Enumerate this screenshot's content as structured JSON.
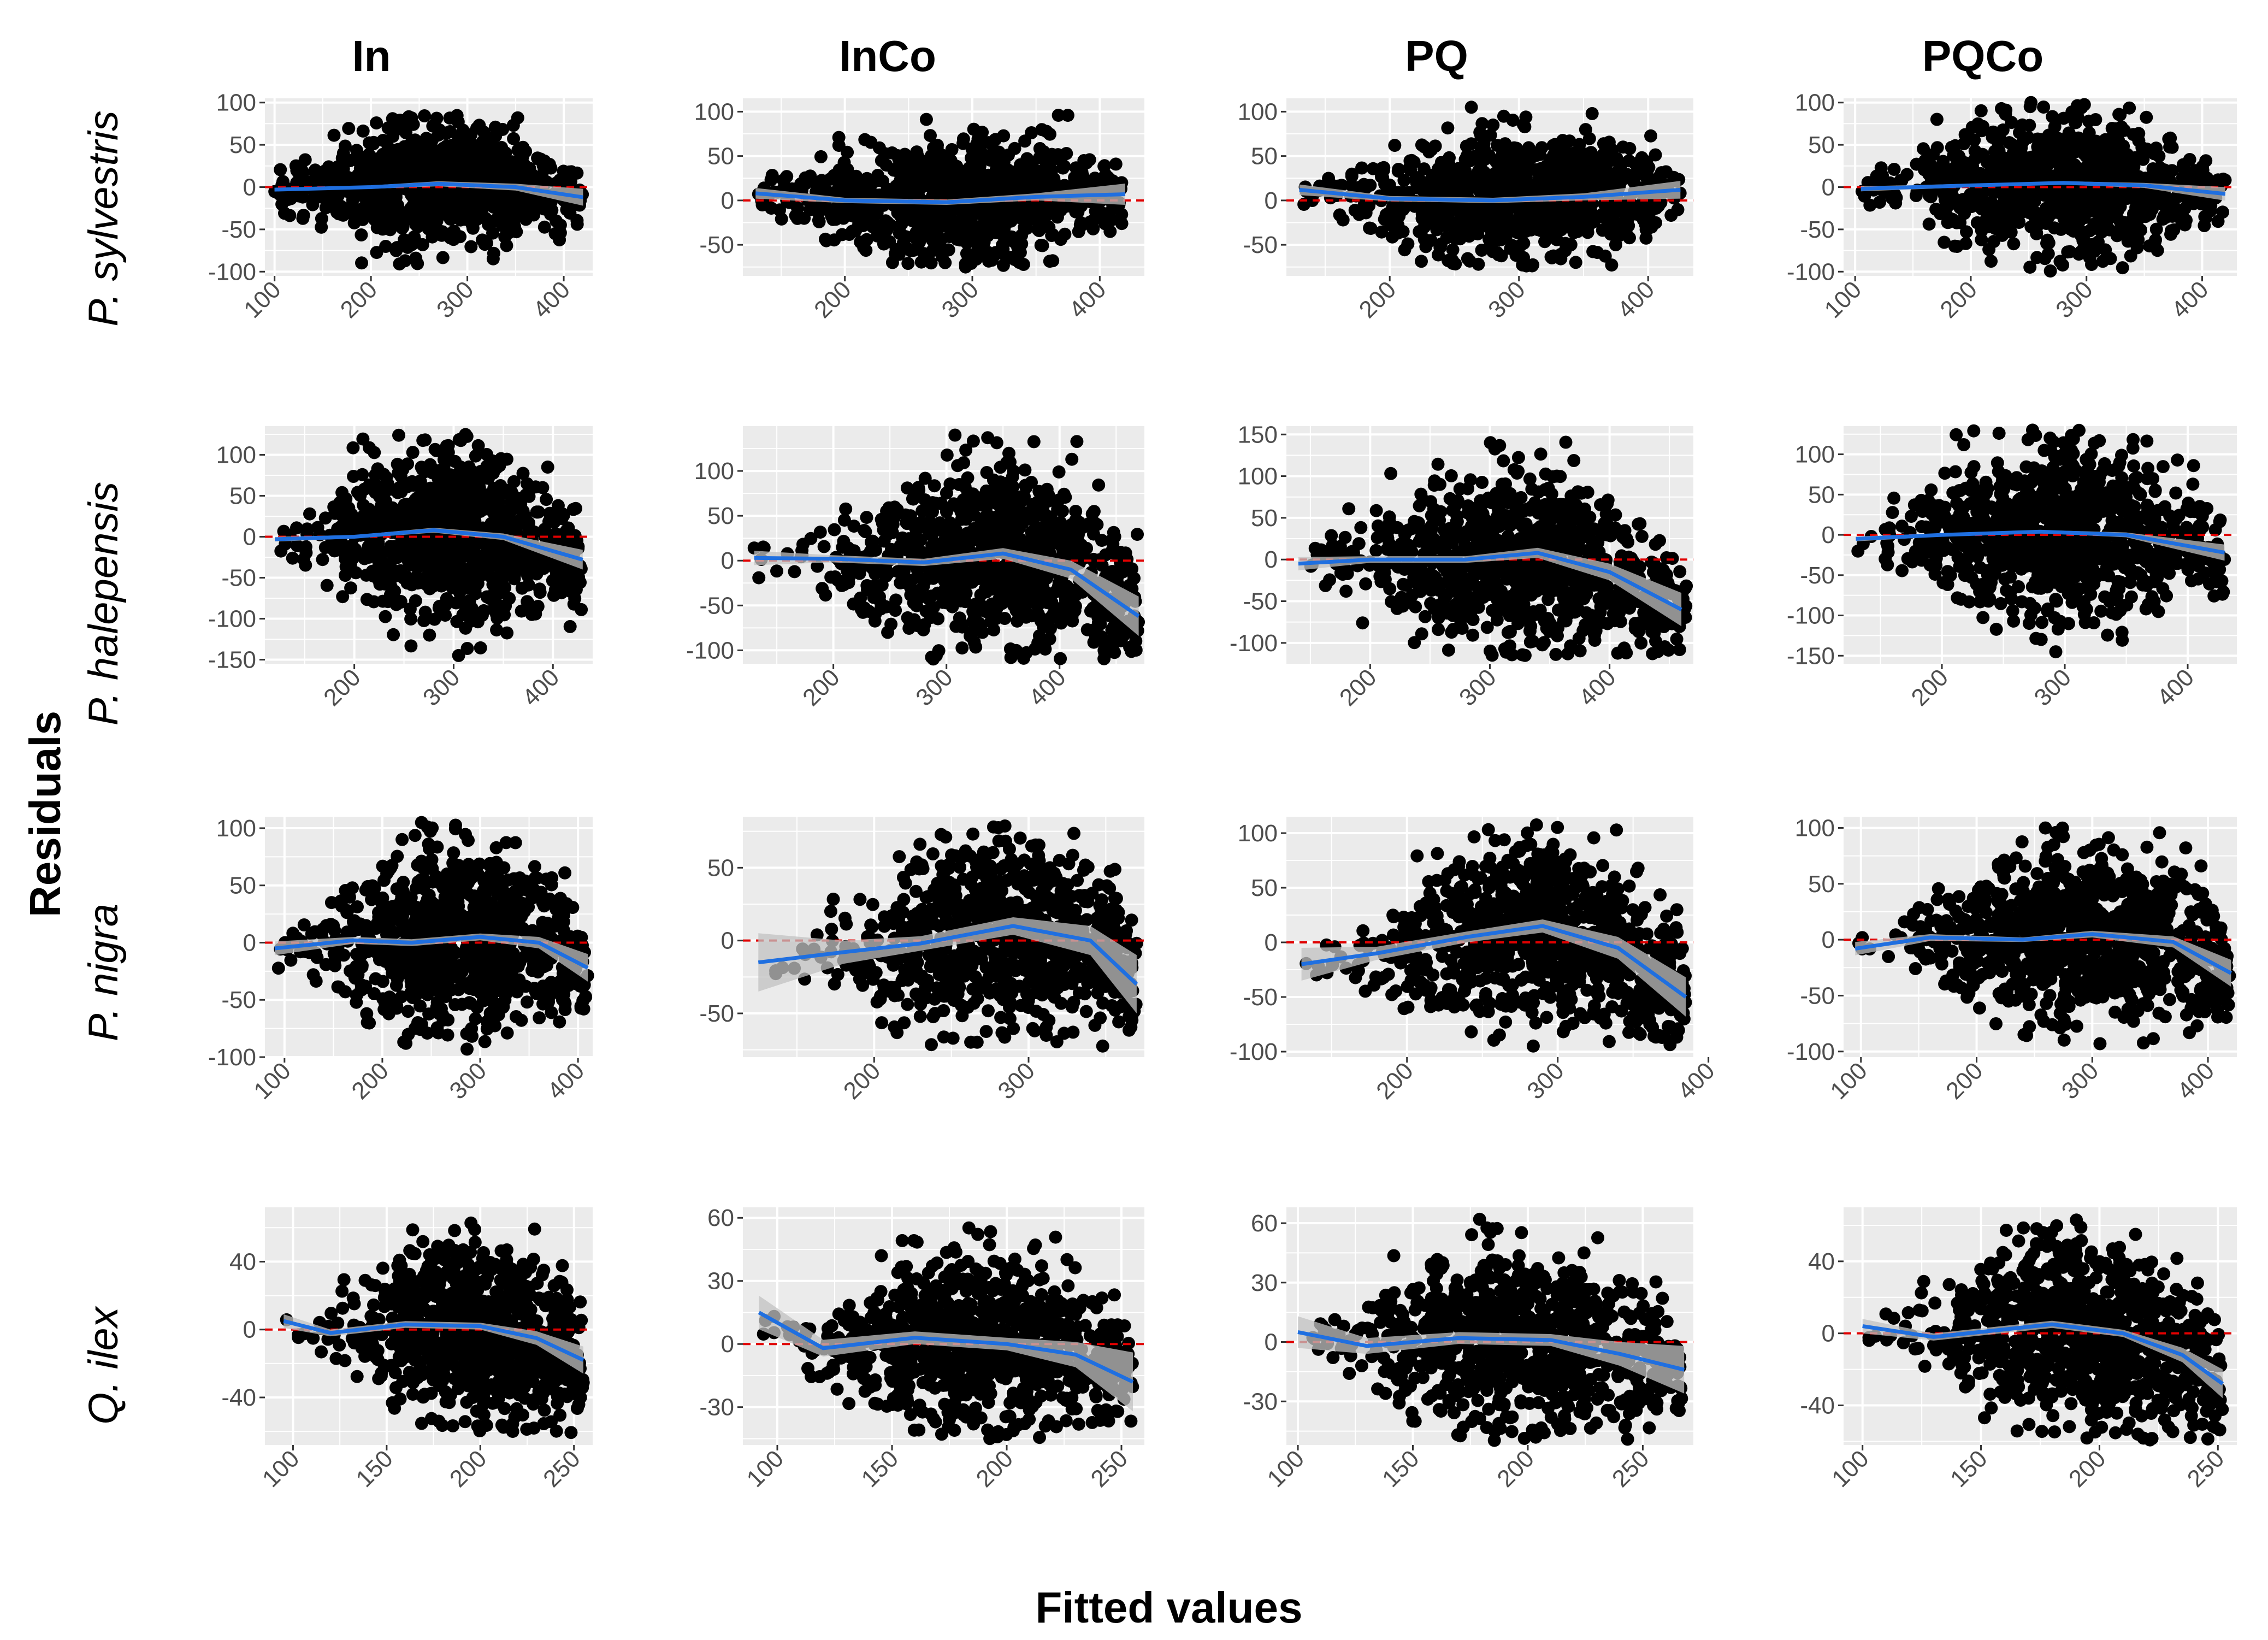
{
  "figure": {
    "col_titles": [
      "In",
      "InCo",
      "PQ",
      "PQCo"
    ],
    "row_labels": [
      "P. sylvestris",
      "P. halepensis",
      "P. nigra",
      "Q. ilex"
    ],
    "xlabel": "Fitted values",
    "ylabel": "Residuals"
  },
  "colors": {
    "panel_bg": "#ebebeb",
    "grid": "#ffffff",
    "points": "#000000",
    "smooth_line": "#1f6fe0",
    "confidence_band": "#c2c2c2",
    "zero_line": "#e00000",
    "tick_text": "#4d4d4d"
  },
  "chart_data": [
    {
      "type": "scatter",
      "row": 0,
      "col": 0,
      "xlim": [
        90,
        430
      ],
      "ylim": [
        -105,
        105
      ],
      "xticks": [
        100,
        200,
        300,
        400
      ],
      "yticks": [
        -100,
        -50,
        0,
        50,
        100
      ],
      "spread": {
        "x": [
          100,
          420
        ],
        "peak_x": 270,
        "pos": 85,
        "neg": -95
      },
      "smooth": [
        [
          100,
          -3
        ],
        [
          200,
          0
        ],
        [
          270,
          4
        ],
        [
          350,
          0
        ],
        [
          420,
          -12
        ]
      ],
      "band": [
        2,
        2,
        3,
        4,
        10
      ]
    },
    {
      "type": "scatter",
      "row": 0,
      "col": 1,
      "xlim": [
        120,
        435
      ],
      "ylim": [
        -85,
        115
      ],
      "xticks": [
        200,
        300,
        400
      ],
      "yticks": [
        -50,
        0,
        50,
        100
      ],
      "spread": {
        "x": [
          130,
          420
        ],
        "peak_x": 290,
        "pos": 100,
        "neg": -75
      },
      "smooth": [
        [
          130,
          8
        ],
        [
          200,
          0
        ],
        [
          280,
          -2
        ],
        [
          350,
          4
        ],
        [
          420,
          7
        ]
      ],
      "band": [
        6,
        3,
        3,
        4,
        12
      ]
    },
    {
      "type": "scatter",
      "row": 0,
      "col": 2,
      "xlim": [
        120,
        435
      ],
      "ylim": [
        -85,
        115
      ],
      "xticks": [
        200,
        300,
        400
      ],
      "yticks": [
        -50,
        0,
        50,
        100
      ],
      "spread": {
        "x": [
          130,
          425
        ],
        "peak_x": 300,
        "pos": 105,
        "neg": -75
      },
      "smooth": [
        [
          130,
          12
        ],
        [
          200,
          2
        ],
        [
          280,
          0
        ],
        [
          350,
          4
        ],
        [
          425,
          12
        ]
      ],
      "band": [
        6,
        3,
        3,
        4,
        10
      ]
    },
    {
      "type": "scatter",
      "row": 0,
      "col": 3,
      "xlim": [
        90,
        430
      ],
      "ylim": [
        -105,
        105
      ],
      "xticks": [
        100,
        200,
        300,
        400
      ],
      "yticks": [
        -100,
        -50,
        0,
        50,
        100
      ],
      "spread": {
        "x": [
          105,
          420
        ],
        "peak_x": 280,
        "pos": 100,
        "neg": -100
      },
      "smooth": [
        [
          105,
          -2
        ],
        [
          200,
          2
        ],
        [
          280,
          5
        ],
        [
          350,
          2
        ],
        [
          420,
          -8
        ]
      ],
      "band": [
        3,
        2,
        2,
        3,
        8
      ]
    },
    {
      "type": "scatter",
      "row": 1,
      "col": 0,
      "xlim": [
        110,
        440
      ],
      "ylim": [
        -155,
        135
      ],
      "xticks": [
        200,
        300,
        400
      ],
      "yticks": [
        -150,
        -100,
        -50,
        0,
        50,
        100
      ],
      "spread": {
        "x": [
          120,
          430
        ],
        "peak_x": 300,
        "pos": 125,
        "neg": -145
      },
      "smooth": [
        [
          120,
          -3
        ],
        [
          200,
          0
        ],
        [
          280,
          8
        ],
        [
          350,
          0
        ],
        [
          430,
          -28
        ]
      ],
      "band": [
        3,
        2,
        3,
        4,
        12
      ]
    },
    {
      "type": "scatter",
      "row": 1,
      "col": 1,
      "xlim": [
        120,
        475
      ],
      "ylim": [
        -115,
        150
      ],
      "xticks": [
        200,
        300,
        400
      ],
      "yticks": [
        -100,
        -50,
        0,
        50,
        100
      ],
      "spread": {
        "x": [
          130,
          470
        ],
        "peak_x": 350,
        "pos": 140,
        "neg": -110
      },
      "smooth": [
        [
          130,
          3
        ],
        [
          200,
          2
        ],
        [
          280,
          -2
        ],
        [
          350,
          8
        ],
        [
          410,
          -10
        ],
        [
          470,
          -62
        ]
      ],
      "band": [
        8,
        4,
        4,
        6,
        10,
        22
      ]
    },
    {
      "type": "scatter",
      "row": 1,
      "col": 2,
      "xlim": [
        130,
        470
      ],
      "ylim": [
        -125,
        160
      ],
      "xticks": [
        200,
        300,
        400
      ],
      "yticks": [
        -100,
        -50,
        0,
        50,
        100,
        150
      ],
      "spread": {
        "x": [
          140,
          465
        ],
        "peak_x": 330,
        "pos": 145,
        "neg": -115
      },
      "smooth": [
        [
          140,
          -5
        ],
        [
          200,
          0
        ],
        [
          280,
          0
        ],
        [
          340,
          8
        ],
        [
          400,
          -15
        ],
        [
          460,
          -60
        ]
      ],
      "band": [
        8,
        4,
        4,
        6,
        10,
        20
      ]
    },
    {
      "type": "scatter",
      "row": 1,
      "col": 3,
      "xlim": [
        120,
        440
      ],
      "ylim": [
        -160,
        135
      ],
      "xticks": [
        200,
        300,
        400
      ],
      "yticks": [
        -150,
        -100,
        -50,
        0,
        50,
        100
      ],
      "spread": {
        "x": [
          130,
          430
        ],
        "peak_x": 300,
        "pos": 130,
        "neg": -150
      },
      "smooth": [
        [
          130,
          -5
        ],
        [
          200,
          0
        ],
        [
          280,
          4
        ],
        [
          350,
          0
        ],
        [
          430,
          -22
        ]
      ],
      "band": [
        3,
        2,
        2,
        3,
        10
      ]
    },
    {
      "type": "scatter",
      "row": 2,
      "col": 0,
      "xlim": [
        80,
        415
      ],
      "ylim": [
        -100,
        110
      ],
      "xticks": [
        100,
        200,
        300,
        400
      ],
      "yticks": [
        -100,
        -50,
        0,
        50,
        100
      ],
      "spread": {
        "x": [
          90,
          410
        ],
        "peak_x": 280,
        "pos": 105,
        "neg": -95
      },
      "smooth": [
        [
          90,
          -5
        ],
        [
          170,
          2
        ],
        [
          230,
          0
        ],
        [
          300,
          5
        ],
        [
          360,
          0
        ],
        [
          410,
          -22
        ]
      ],
      "band": [
        6,
        3,
        3,
        3,
        5,
        12
      ]
    },
    {
      "type": "scatter",
      "row": 2,
      "col": 1,
      "xlim": [
        115,
        375
      ],
      "ylim": [
        -80,
        85
      ],
      "xticks": [
        200,
        300
      ],
      "yticks": [
        -50,
        0,
        50
      ],
      "spread": {
        "x": [
          125,
          370
        ],
        "peak_x": 285,
        "pos": 80,
        "neg": -75
      },
      "smooth": [
        [
          125,
          -15
        ],
        [
          180,
          -8
        ],
        [
          230,
          -2
        ],
        [
          290,
          10
        ],
        [
          340,
          0
        ],
        [
          370,
          -30
        ]
      ],
      "band": [
        20,
        8,
        5,
        6,
        10,
        20
      ]
    },
    {
      "type": "scatter",
      "row": 2,
      "col": 2,
      "xlim": [
        120,
        390
      ],
      "ylim": [
        -105,
        115
      ],
      "xticks": [
        200,
        300,
        400
      ],
      "yticks": [
        -100,
        -50,
        0,
        50,
        100
      ],
      "spread": {
        "x": [
          130,
          385
        ],
        "peak_x": 290,
        "pos": 110,
        "neg": -95
      },
      "smooth": [
        [
          130,
          -20
        ],
        [
          180,
          -10
        ],
        [
          240,
          5
        ],
        [
          290,
          15
        ],
        [
          340,
          -5
        ],
        [
          385,
          -50
        ]
      ],
      "band": [
        15,
        6,
        5,
        6,
        10,
        18
      ]
    },
    {
      "type": "scatter",
      "row": 2,
      "col": 3,
      "xlim": [
        85,
        425
      ],
      "ylim": [
        -105,
        110
      ],
      "xticks": [
        100,
        200,
        300,
        400
      ],
      "yticks": [
        -100,
        -50,
        0,
        50,
        100
      ],
      "spread": {
        "x": [
          95,
          420
        ],
        "peak_x": 300,
        "pos": 100,
        "neg": -95
      },
      "smooth": [
        [
          95,
          -8
        ],
        [
          160,
          2
        ],
        [
          240,
          0
        ],
        [
          300,
          5
        ],
        [
          370,
          -2
        ],
        [
          420,
          -30
        ]
      ],
      "band": [
        6,
        3,
        2,
        3,
        5,
        12
      ]
    },
    {
      "type": "scatter",
      "row": 3,
      "col": 0,
      "xlim": [
        85,
        260
      ],
      "ylim": [
        -68,
        72
      ],
      "xticks": [
        100,
        150,
        200,
        250
      ],
      "yticks": [
        -40,
        0,
        40
      ],
      "spread": {
        "x": [
          95,
          255
        ],
        "peak_x": 200,
        "pos": 65,
        "neg": -62
      },
      "smooth": [
        [
          95,
          5
        ],
        [
          120,
          -2
        ],
        [
          160,
          3
        ],
        [
          200,
          2
        ],
        [
          230,
          -5
        ],
        [
          255,
          -18
        ]
      ],
      "band": [
        4,
        2,
        2,
        2,
        4,
        8
      ]
    },
    {
      "type": "scatter",
      "row": 3,
      "col": 1,
      "xlim": [
        85,
        260
      ],
      "ylim": [
        -48,
        65
      ],
      "xticks": [
        100,
        150,
        200,
        250
      ],
      "yticks": [
        -30,
        0,
        30,
        60
      ],
      "spread": {
        "x": [
          92,
          255
        ],
        "peak_x": 190,
        "pos": 58,
        "neg": -45
      },
      "smooth": [
        [
          92,
          15
        ],
        [
          120,
          -2
        ],
        [
          160,
          3
        ],
        [
          200,
          0
        ],
        [
          230,
          -5
        ],
        [
          255,
          -18
        ]
      ],
      "band": [
        8,
        4,
        3,
        3,
        6,
        14
      ]
    },
    {
      "type": "scatter",
      "row": 3,
      "col": 2,
      "xlim": [
        95,
        272
      ],
      "ylim": [
        -52,
        68
      ],
      "xticks": [
        100,
        150,
        200,
        250
      ],
      "yticks": [
        -30,
        0,
        30,
        60
      ],
      "spread": {
        "x": [
          100,
          268
        ],
        "peak_x": 200,
        "pos": 62,
        "neg": -50
      },
      "smooth": [
        [
          100,
          5
        ],
        [
          130,
          -2
        ],
        [
          170,
          2
        ],
        [
          210,
          1
        ],
        [
          240,
          -6
        ],
        [
          268,
          -14
        ]
      ],
      "band": [
        8,
        4,
        3,
        3,
        6,
        12
      ]
    },
    {
      "type": "scatter",
      "row": 3,
      "col": 3,
      "xlim": [
        92,
        258
      ],
      "ylim": [
        -62,
        70
      ],
      "xticks": [
        100,
        150,
        200,
        250
      ],
      "yticks": [
        -40,
        0,
        40
      ],
      "spread": {
        "x": [
          100,
          252
        ],
        "peak_x": 195,
        "pos": 65,
        "neg": -60
      },
      "smooth": [
        [
          100,
          4
        ],
        [
          130,
          -2
        ],
        [
          180,
          5
        ],
        [
          210,
          0
        ],
        [
          235,
          -12
        ],
        [
          252,
          -28
        ]
      ],
      "band": [
        4,
        2,
        2,
        2,
        4,
        8
      ]
    }
  ]
}
